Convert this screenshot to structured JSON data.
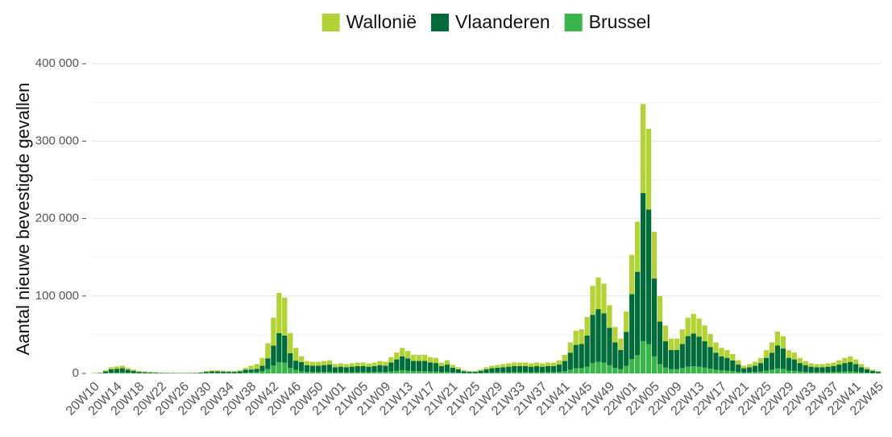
{
  "chart_data": {
    "type": "bar",
    "stacked": true,
    "y_label": "Aantal nieuwe bevestigde gevallen",
    "ylim": [
      0,
      420000
    ],
    "yticks": [
      0,
      {
        "value": 100000,
        "label": "100 000"
      },
      {
        "value": 200000,
        "label": "200 000"
      },
      {
        "value": 300000,
        "label": "300 000"
      },
      {
        "value": 400000,
        "label": "400 000"
      }
    ],
    "grid": true,
    "legend": "top",
    "categories": [
      "20W10",
      null,
      null,
      null,
      "20W14",
      null,
      null,
      null,
      "20W18",
      null,
      null,
      null,
      "20W22",
      null,
      null,
      null,
      "20W26",
      null,
      null,
      null,
      "20W30",
      null,
      null,
      null,
      "20W34",
      null,
      null,
      null,
      "20W38",
      null,
      null,
      null,
      "20W42",
      null,
      null,
      null,
      "20W46",
      null,
      null,
      null,
      "20W50",
      null,
      null,
      null,
      "21W01",
      null,
      null,
      null,
      "21W05",
      null,
      null,
      null,
      "21W09",
      null,
      null,
      null,
      "21W13",
      null,
      null,
      null,
      "21W17",
      null,
      null,
      null,
      "21W21",
      null,
      null,
      null,
      "21W25",
      null,
      null,
      null,
      "21W29",
      null,
      null,
      null,
      "21W33",
      null,
      null,
      null,
      "21W37",
      null,
      null,
      null,
      "21W41",
      null,
      null,
      null,
      "21W45",
      null,
      null,
      null,
      "21W49",
      null,
      null,
      null,
      "22W01",
      null,
      null,
      null,
      "22W05",
      null,
      null,
      null,
      "22W09",
      null,
      null,
      null,
      "22W13",
      null,
      null,
      null,
      "22W17",
      null,
      null,
      null,
      "22W21",
      null,
      null,
      null,
      "22W25",
      null,
      null,
      null,
      "22W29",
      null,
      null,
      null,
      "22W33",
      null,
      null,
      null,
      "22W37",
      null,
      null,
      null,
      "22W41",
      null,
      null,
      null,
      "22W45"
    ],
    "series": [
      {
        "name": "Wallonië",
        "color": "#b3d334",
        "values": [
          165,
          330,
          1320,
          2640,
          2970,
          3300,
          2310,
          1650,
          990,
          825,
          660,
          495,
          396,
          330,
          264,
          231,
          231,
          264,
          330,
          495,
          990,
          1320,
          1320,
          1155,
          990,
          990,
          1320,
          2310,
          5000,
          6000,
          10000,
          19500,
          36000,
          52000,
          49000,
          26000,
          16500,
          7260,
          5280,
          4950,
          4950,
          5280,
          5610,
          3960,
          4290,
          3960,
          4290,
          4620,
          4620,
          4290,
          4620,
          5280,
          4950,
          6930,
          8910,
          10890,
          9570,
          7920,
          7920,
          7920,
          6930,
          6600,
          4620,
          5610,
          3630,
          2640,
          1320,
          990,
          990,
          1650,
          2640,
          3300,
          3630,
          3960,
          4290,
          4620,
          4620,
          4620,
          4290,
          4620,
          4290,
          4620,
          4620,
          5610,
          7920,
          13200,
          18150,
          18810,
          24090,
          37290,
          40920,
          38280,
          29040,
          19800,
          14850,
          26400,
          50490,
          64680,
          114840,
          104280,
          60390,
          33000,
          20460,
          14850,
          14850,
          18810,
          23760,
          25410,
          23430,
          20460,
          16830,
          13200,
          10890,
          9900,
          8250,
          5610,
          3300,
          3960,
          4950,
          6600,
          9900,
          13200,
          17820,
          15840,
          9900,
          8910,
          6600,
          5280,
          4290,
          3960,
          3960,
          4290,
          4620,
          5610,
          6600,
          7260,
          5940,
          3960,
          2640,
          1650,
          990
        ]
      },
      {
        "name": "Vlaanderen",
        "color": "#006c3a",
        "values": [
          275,
          550,
          2200,
          4400,
          4950,
          5500,
          3850,
          2750,
          1650,
          1375,
          1100,
          825,
          660,
          550,
          440,
          385,
          385,
          440,
          550,
          825,
          1650,
          2200,
          2200,
          1925,
          1650,
          1650,
          2200,
          3850,
          3600,
          4320,
          7200,
          14040,
          25920,
          37440,
          35280,
          18720,
          11880,
          12100,
          8800,
          8250,
          8250,
          8800,
          9350,
          6600,
          7150,
          6600,
          7150,
          7700,
          7700,
          7150,
          7700,
          8800,
          8250,
          11550,
          14850,
          18150,
          15950,
          13200,
          13200,
          13200,
          11550,
          11000,
          7700,
          9350,
          6050,
          4400,
          2200,
          1650,
          1650,
          2750,
          4400,
          5500,
          6050,
          6600,
          7150,
          7700,
          7700,
          7700,
          7150,
          7700,
          7150,
          7700,
          7700,
          9350,
          13200,
          22000,
          30250,
          31350,
          40150,
          62150,
          68200,
          63800,
          48400,
          33000,
          24750,
          44000,
          84150,
          107800,
          191400,
          173800,
          100650,
          55000,
          34100,
          24750,
          24750,
          31350,
          39600,
          42350,
          39050,
          34100,
          28050,
          22000,
          18150,
          16500,
          13750,
          9350,
          5500,
          6600,
          8250,
          11000,
          16500,
          22000,
          29700,
          26400,
          16500,
          14850,
          11000,
          8800,
          7150,
          6600,
          6600,
          7150,
          7700,
          9350,
          11000,
          12100,
          9900,
          6600,
          4400,
          2750,
          1650
        ]
      },
      {
        "name": "Brussel",
        "color": "#3ab54a",
        "values": [
          60,
          120,
          480,
          960,
          1080,
          1200,
          840,
          600,
          360,
          300,
          240,
          180,
          144,
          120,
          96,
          84,
          84,
          96,
          120,
          180,
          360,
          480,
          480,
          420,
          360,
          360,
          480,
          840,
          1400,
          1680,
          2800,
          5460,
          10080,
          14560,
          13720,
          7280,
          4620,
          2640,
          1920,
          1800,
          1800,
          1920,
          2040,
          1440,
          1560,
          1440,
          1560,
          1680,
          1680,
          1560,
          1680,
          1920,
          1800,
          2520,
          3240,
          3960,
          3480,
          2880,
          2880,
          2880,
          2520,
          2400,
          1680,
          2040,
          1320,
          960,
          480,
          360,
          360,
          600,
          960,
          1200,
          1320,
          1440,
          1560,
          1680,
          1680,
          1680,
          1560,
          1680,
          1560,
          1680,
          1680,
          2040,
          2880,
          4800,
          6600,
          6840,
          8760,
          13560,
          14880,
          13920,
          10560,
          7200,
          5400,
          9600,
          18360,
          23520,
          41760,
          37920,
          21960,
          12000,
          7440,
          5400,
          5400,
          6840,
          8640,
          9240,
          8520,
          7440,
          6120,
          4800,
          3960,
          3600,
          3000,
          2040,
          1200,
          1440,
          1800,
          2400,
          3600,
          4800,
          6480,
          5760,
          3600,
          3240,
          2400,
          1920,
          1560,
          1440,
          1440,
          1560,
          1680,
          2040,
          2400,
          2640,
          2160,
          1440,
          960,
          600,
          360
        ]
      }
    ]
  }
}
